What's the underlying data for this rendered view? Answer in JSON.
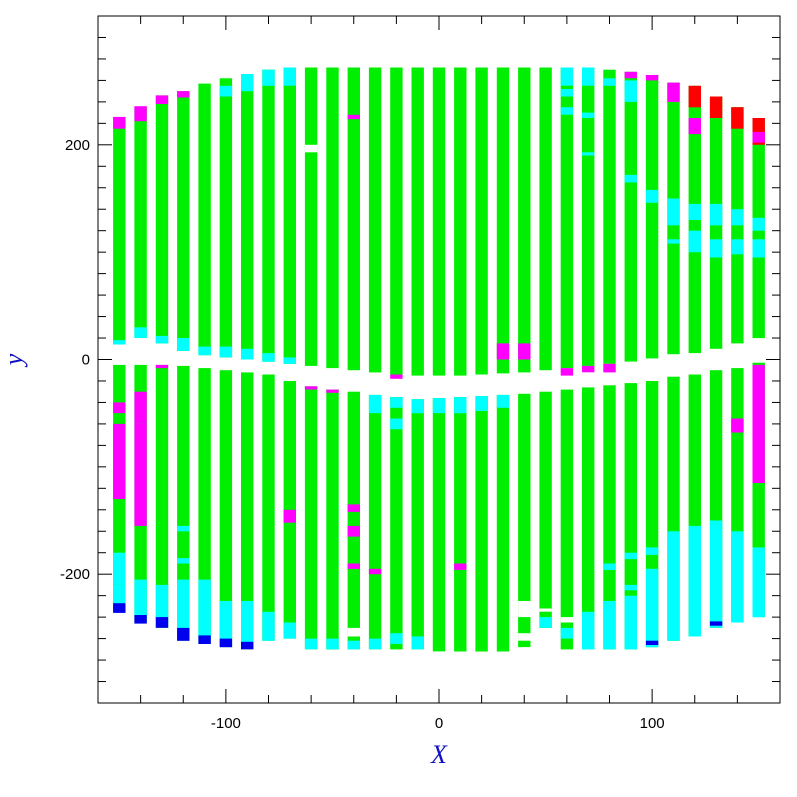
{
  "chart_data": {
    "type": "heatmap",
    "title": "",
    "xlabel": "X",
    "ylabel": "y",
    "xlim": [
      -160,
      160
    ],
    "ylim": [
      -320,
      320
    ],
    "x_ticks": [
      -100,
      0,
      100
    ],
    "y_ticks": [
      -200,
      0,
      200
    ],
    "minor_tick_step": 20,
    "grid": false,
    "colors": {
      "green": "#00ee00",
      "cyan": "#00ffff",
      "magenta": "#ff00ff",
      "red": "#ff0000",
      "blue": "#0000ee"
    },
    "strip_width": 5.8,
    "strips": [
      {
        "x": -150,
        "upper": [
          14,
          220
        ],
        "lower": [
          -235,
          -5
        ],
        "segments": [
          [
            215,
            226,
            "magenta"
          ],
          [
            14,
            18,
            "cyan"
          ],
          [
            -40,
            -50,
            "magenta"
          ],
          [
            -60,
            -130,
            "magenta"
          ],
          [
            -180,
            -210,
            "cyan"
          ],
          [
            -210,
            -235,
            "cyan"
          ],
          [
            -227,
            -236,
            "blue"
          ]
        ]
      },
      {
        "x": -140,
        "upper": [
          20,
          235
        ],
        "lower": [
          -245,
          -5
        ],
        "segments": [
          [
            222,
            236,
            "magenta"
          ],
          [
            20,
            30,
            "cyan"
          ],
          [
            -30,
            -60,
            "magenta"
          ],
          [
            -60,
            -150,
            "magenta"
          ],
          [
            -150,
            -155,
            "magenta"
          ],
          [
            -205,
            -240,
            "cyan"
          ],
          [
            -238,
            -246,
            "blue"
          ]
        ]
      },
      {
        "x": -130,
        "upper": [
          15,
          246
        ],
        "lower": [
          -250,
          -5
        ],
        "segments": [
          [
            238,
            246,
            "magenta"
          ],
          [
            15,
            22,
            "cyan"
          ],
          [
            -5,
            -8,
            "magenta"
          ],
          [
            -210,
            -245,
            "cyan"
          ],
          [
            -240,
            -250,
            "blue"
          ]
        ]
      },
      {
        "x": -120,
        "upper": [
          8,
          250
        ],
        "lower": [
          -262,
          -6
        ],
        "segments": [
          [
            244,
            250,
            "magenta"
          ],
          [
            8,
            20,
            "cyan"
          ],
          [
            -155,
            -160,
            "cyan"
          ],
          [
            -185,
            -190,
            "cyan"
          ],
          [
            -205,
            -255,
            "cyan"
          ],
          [
            -250,
            -262,
            "blue"
          ]
        ]
      },
      {
        "x": -110,
        "upper": [
          4,
          257
        ],
        "lower": [
          -265,
          -8
        ],
        "segments": [
          [
            4,
            12,
            "cyan"
          ],
          [
            -205,
            -262,
            "cyan"
          ],
          [
            -257,
            -265,
            "blue"
          ]
        ]
      },
      {
        "x": -100,
        "upper": [
          2,
          262
        ],
        "lower": [
          -268,
          -10
        ],
        "segments": [
          [
            245,
            255,
            "cyan"
          ],
          [
            2,
            12,
            "cyan"
          ],
          [
            -225,
            -262,
            "cyan"
          ],
          [
            -260,
            -268,
            "blue"
          ]
        ]
      },
      {
        "x": -90,
        "upper": [
          0,
          266
        ],
        "lower": [
          -270,
          -12
        ],
        "segments": [
          [
            250,
            266,
            "cyan"
          ],
          [
            0,
            10,
            "cyan"
          ],
          [
            -225,
            -265,
            "cyan"
          ],
          [
            -263,
            -270,
            "blue"
          ]
        ]
      },
      {
        "x": -80,
        "upper": [
          -2,
          270
        ],
        "lower": [
          -262,
          -14
        ],
        "segments": [
          [
            255,
            270,
            "cyan"
          ],
          [
            -2,
            6,
            "cyan"
          ],
          [
            -235,
            -262,
            "cyan"
          ]
        ]
      },
      {
        "x": -70,
        "upper": [
          -4,
          272
        ],
        "lower": [
          -260,
          -20
        ],
        "segments": [
          [
            255,
            272,
            "cyan"
          ],
          [
            -4,
            2,
            "cyan"
          ],
          [
            -140,
            -152,
            "magenta"
          ],
          [
            -245,
            -260,
            "cyan"
          ]
        ]
      },
      {
        "x": -60,
        "upper": [
          -6,
          272
        ],
        "lower": [
          -270,
          -25
        ],
        "segments": [
          [
            193,
            200,
            "white"
          ],
          [
            -25,
            -28,
            "magenta"
          ],
          [
            -260,
            -270,
            "cyan"
          ]
        ]
      },
      {
        "x": -50,
        "upper": [
          -8,
          272
        ],
        "lower": [
          -270,
          -28
        ],
        "segments": [
          [
            -28,
            -31,
            "magenta"
          ],
          [
            -260,
            -270,
            "cyan"
          ]
        ]
      },
      {
        "x": -40,
        "upper": [
          -10,
          272
        ],
        "lower": [
          -270,
          -30
        ],
        "segments": [
          [
            224,
            228,
            "magenta"
          ],
          [
            -135,
            -142,
            "magenta"
          ],
          [
            -155,
            -165,
            "magenta"
          ],
          [
            -190,
            -195,
            "magenta"
          ],
          [
            -250,
            -258,
            "white"
          ],
          [
            -262,
            -270,
            "cyan"
          ]
        ]
      },
      {
        "x": -30,
        "upper": [
          -12,
          272
        ],
        "lower": [
          -270,
          -33
        ],
        "segments": [
          [
            -33,
            -50,
            "cyan"
          ],
          [
            -195,
            -200,
            "magenta"
          ],
          [
            -260,
            -270,
            "cyan"
          ]
        ]
      },
      {
        "x": -20,
        "upper": [
          -14,
          272
        ],
        "lower": [
          -270,
          -35
        ],
        "segments": [
          [
            -14,
            -18,
            "magenta"
          ],
          [
            -35,
            -45,
            "cyan"
          ],
          [
            -55,
            -65,
            "cyan"
          ],
          [
            -255,
            -265,
            "cyan"
          ]
        ]
      },
      {
        "x": -10,
        "upper": [
          -15,
          272
        ],
        "lower": [
          -270,
          -37
        ],
        "segments": [
          [
            -37,
            -50,
            "cyan"
          ],
          [
            -258,
            -270,
            "cyan"
          ]
        ]
      },
      {
        "x": 0,
        "upper": [
          -15,
          272
        ],
        "lower": [
          -272,
          -36
        ],
        "segments": [
          [
            -36,
            -50,
            "cyan"
          ]
        ]
      },
      {
        "x": 10,
        "upper": [
          -15,
          272
        ],
        "lower": [
          -272,
          -35
        ],
        "segments": [
          [
            -35,
            -50,
            "cyan"
          ],
          [
            -190,
            -196,
            "magenta"
          ]
        ]
      },
      {
        "x": 20,
        "upper": [
          -14,
          272
        ],
        "lower": [
          -272,
          -34
        ],
        "segments": [
          [
            -34,
            -48,
            "cyan"
          ]
        ]
      },
      {
        "x": 30,
        "upper": [
          -13,
          272
        ],
        "lower": [
          -272,
          -33
        ],
        "segments": [
          [
            0,
            15,
            "magenta"
          ],
          [
            -33,
            -45,
            "cyan"
          ]
        ]
      },
      {
        "x": 40,
        "upper": [
          -12,
          272
        ],
        "lower": [
          -268,
          -32
        ],
        "segments": [
          [
            0,
            15,
            "magenta"
          ],
          [
            -225,
            -240,
            "white"
          ],
          [
            -255,
            -262,
            "white"
          ]
        ]
      },
      {
        "x": 50,
        "upper": [
          -10,
          272
        ],
        "lower": [
          -250,
          -30
        ],
        "segments": [
          [
            -232,
            -235,
            "white"
          ],
          [
            -240,
            -250,
            "cyan"
          ]
        ]
      },
      {
        "x": 60,
        "upper": [
          -8,
          272
        ],
        "lower": [
          -270,
          -28
        ],
        "segments": [
          [
            255,
            272,
            "cyan"
          ],
          [
            245,
            252,
            "cyan"
          ],
          [
            228,
            235,
            "cyan"
          ],
          [
            -8,
            -15,
            "magenta"
          ],
          [
            -240,
            -245,
            "white"
          ],
          [
            -250,
            -260,
            "cyan"
          ]
        ]
      },
      {
        "x": 70,
        "upper": [
          -6,
          272
        ],
        "lower": [
          -270,
          -26
        ],
        "segments": [
          [
            255,
            272,
            "cyan"
          ],
          [
            225,
            230,
            "cyan"
          ],
          [
            190,
            193,
            "cyan"
          ],
          [
            -6,
            -12,
            "magenta"
          ],
          [
            -235,
            -270,
            "cyan"
          ]
        ]
      },
      {
        "x": 80,
        "upper": [
          -4,
          270
        ],
        "lower": [
          -270,
          -24
        ],
        "segments": [
          [
            255,
            262,
            "cyan"
          ],
          [
            -4,
            -12,
            "magenta"
          ],
          [
            -190,
            -196,
            "cyan"
          ],
          [
            -225,
            -270,
            "cyan"
          ]
        ]
      },
      {
        "x": 90,
        "upper": [
          -2,
          268
        ],
        "lower": [
          -270,
          -22
        ],
        "segments": [
          [
            262,
            268,
            "magenta"
          ],
          [
            240,
            260,
            "cyan"
          ],
          [
            165,
            172,
            "cyan"
          ],
          [
            -180,
            -186,
            "cyan"
          ],
          [
            -210,
            -215,
            "cyan"
          ],
          [
            -220,
            -270,
            "cyan"
          ]
        ]
      },
      {
        "x": 100,
        "upper": [
          1,
          265
        ],
        "lower": [
          -268,
          -20
        ],
        "segments": [
          [
            260,
            265,
            "magenta"
          ],
          [
            146,
            158,
            "cyan"
          ],
          [
            -175,
            -182,
            "cyan"
          ],
          [
            -195,
            -268,
            "cyan"
          ],
          [
            -262,
            -266,
            "blue"
          ]
        ]
      },
      {
        "x": 110,
        "upper": [
          5,
          258
        ],
        "lower": [
          -262,
          -16
        ],
        "segments": [
          [
            240,
            258,
            "magenta"
          ],
          [
            125,
            150,
            "cyan"
          ],
          [
            108,
            112,
            "cyan"
          ],
          [
            -160,
            -262,
            "cyan"
          ]
        ]
      },
      {
        "x": 120,
        "upper": [
          6,
          255
        ],
        "lower": [
          -258,
          -14
        ],
        "segments": [
          [
            235,
            255,
            "red"
          ],
          [
            210,
            225,
            "magenta"
          ],
          [
            130,
            145,
            "cyan"
          ],
          [
            100,
            120,
            "cyan"
          ],
          [
            -155,
            -258,
            "cyan"
          ]
        ]
      },
      {
        "x": 130,
        "upper": [
          10,
          245
        ],
        "lower": [
          -250,
          -10
        ],
        "segments": [
          [
            225,
            245,
            "red"
          ],
          [
            125,
            145,
            "cyan"
          ],
          [
            95,
            112,
            "cyan"
          ],
          [
            -150,
            -250,
            "cyan"
          ],
          [
            -244,
            -248,
            "blue"
          ]
        ]
      },
      {
        "x": 140,
        "upper": [
          15,
          235
        ],
        "lower": [
          -245,
          -8
        ],
        "segments": [
          [
            215,
            235,
            "red"
          ],
          [
            125,
            140,
            "cyan"
          ],
          [
            98,
            112,
            "cyan"
          ],
          [
            -55,
            -68,
            "magenta"
          ],
          [
            -160,
            -245,
            "cyan"
          ]
        ]
      },
      {
        "x": 150,
        "upper": [
          20,
          225
        ],
        "lower": [
          -240,
          -3
        ],
        "segments": [
          [
            200,
            225,
            "red"
          ],
          [
            202,
            212,
            "magenta"
          ],
          [
            120,
            132,
            "cyan"
          ],
          [
            95,
            112,
            "cyan"
          ],
          [
            -5,
            -115,
            "magenta"
          ],
          [
            -175,
            -240,
            "cyan"
          ]
        ]
      }
    ]
  }
}
